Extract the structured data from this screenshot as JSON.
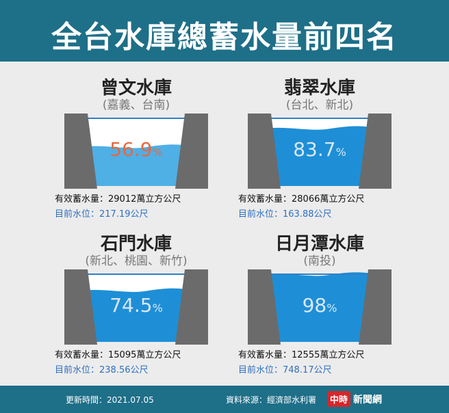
{
  "header": {
    "title": "全台水庫總蓄水量前四名"
  },
  "reservoirs": [
    {
      "name": "曾文水庫",
      "region": "(嘉義、台南)",
      "percent_value": "56.9",
      "percent_symbol": "%",
      "percent": 0.569,
      "capacity": "有效蓄水量：29012萬立方公尺",
      "level": "目前水位：217.19公尺",
      "percent_color": "#e8673d"
    },
    {
      "name": "翡翠水庫",
      "region": "(台北、新北)",
      "percent_value": "83.7",
      "percent_symbol": "%",
      "percent": 0.837,
      "capacity": "有效蓄水量：28066萬立方公尺",
      "level": "目前水位：163.88公尺",
      "percent_color": "#dbe7f4"
    },
    {
      "name": "石門水庫",
      "region": "(新北、桃園、新竹)",
      "percent_value": "74.5",
      "percent_symbol": "%",
      "percent": 0.745,
      "capacity": "有效蓄水量：15095萬立方公尺",
      "level": "目前水位：238.56公尺",
      "percent_color": "#dbe7f4"
    },
    {
      "name": "日月潭水庫",
      "region": "(南投)",
      "percent_value": "98",
      "percent_symbol": "%",
      "percent": 0.98,
      "capacity": "有效蓄水量：12555萬立方公尺",
      "level": "目前水位：748.17公尺",
      "percent_color": "#dbe7f4"
    }
  ],
  "footer": {
    "update": "更新時間：2021.07.05",
    "source": "資料來源：經濟部水利署",
    "logo_mark": "中時",
    "logo_text": "新聞網"
  },
  "colors": {
    "header": "#1e6f88",
    "wall": "#6b6b6b",
    "water_low": "#4fb0e6",
    "water_high": "#1e8fd6",
    "background": "#ececec"
  }
}
